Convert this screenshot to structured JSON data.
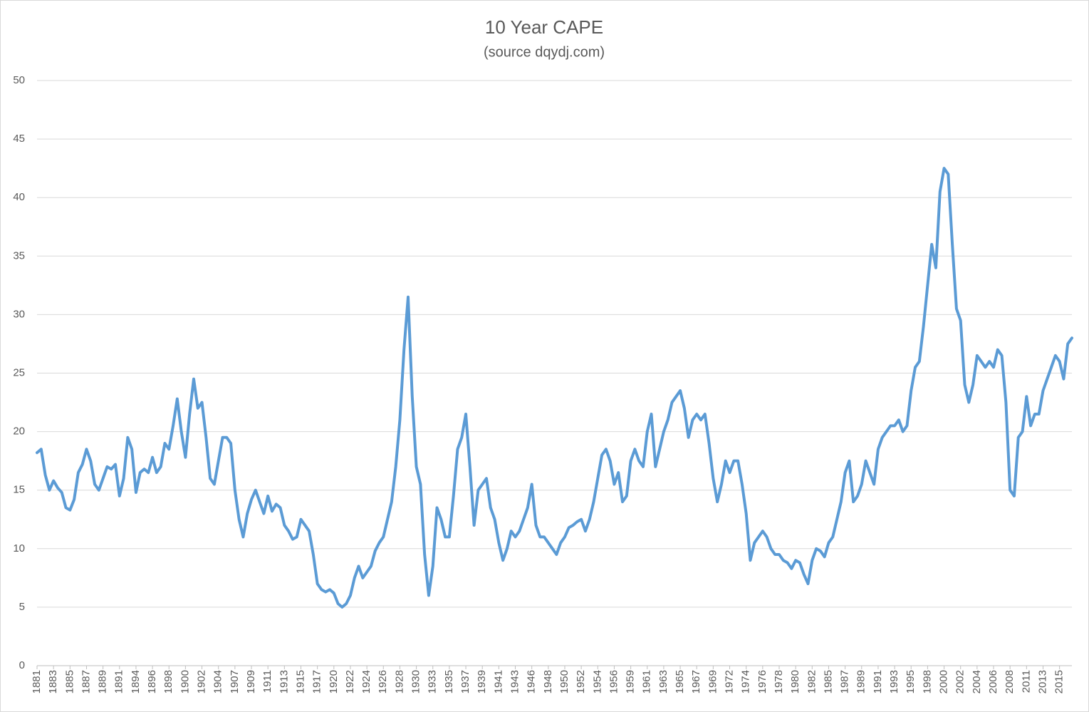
{
  "chart_data": {
    "type": "line",
    "title": "10 Year CAPE",
    "subtitle": "(source dqydj.com)",
    "categories": [
      "1881",
      null,
      null,
      null,
      "1883",
      null,
      null,
      null,
      "1885",
      null,
      null,
      null,
      "1887",
      null,
      null,
      null,
      "1889",
      null,
      null,
      null,
      "1891",
      null,
      null,
      null,
      "1894",
      null,
      null,
      null,
      "1896",
      null,
      null,
      null,
      "1898",
      null,
      null,
      null,
      "1900",
      null,
      null,
      null,
      "1902",
      null,
      null,
      null,
      "1904",
      null,
      null,
      null,
      "1907",
      null,
      null,
      null,
      "1909",
      null,
      null,
      null,
      "1911",
      null,
      null,
      null,
      "1913",
      null,
      null,
      null,
      "1915",
      null,
      null,
      null,
      "1917",
      null,
      null,
      null,
      "1920",
      null,
      null,
      null,
      "1922",
      null,
      null,
      null,
      "1924",
      null,
      null,
      null,
      "1926",
      null,
      null,
      null,
      "1928",
      null,
      null,
      null,
      "1930",
      null,
      null,
      null,
      "1933",
      null,
      null,
      null,
      "1935",
      null,
      null,
      null,
      "1937",
      null,
      null,
      null,
      "1939",
      null,
      null,
      null,
      "1941",
      null,
      null,
      null,
      "1943",
      null,
      null,
      null,
      "1946",
      null,
      null,
      null,
      "1948",
      null,
      null,
      null,
      "1950",
      null,
      null,
      null,
      "1952",
      null,
      null,
      null,
      "1954",
      null,
      null,
      null,
      "1956",
      null,
      null,
      null,
      "1959",
      null,
      null,
      null,
      "1961",
      null,
      null,
      null,
      "1963",
      null,
      null,
      null,
      "1965",
      null,
      null,
      null,
      "1967",
      null,
      null,
      null,
      "1969",
      null,
      null,
      null,
      "1972",
      null,
      null,
      null,
      "1974",
      null,
      null,
      null,
      "1976",
      null,
      null,
      null,
      "1978",
      null,
      null,
      null,
      "1980",
      null,
      null,
      null,
      "1982",
      null,
      null,
      null,
      "1985",
      null,
      null,
      null,
      "1987",
      null,
      null,
      null,
      "1989",
      null,
      null,
      null,
      "1991",
      null,
      null,
      null,
      "1993",
      null,
      null,
      null,
      "1995",
      null,
      null,
      null,
      "1998",
      null,
      null,
      null,
      "2000",
      null,
      null,
      null,
      "2002",
      null,
      null,
      null,
      "2004",
      null,
      null,
      null,
      "2006",
      null,
      null,
      null,
      "2008",
      null,
      null,
      null,
      "2011",
      null,
      null,
      null,
      "2013",
      null,
      null,
      null,
      "2015",
      null,
      null,
      null
    ],
    "values": [
      18.2,
      18.5,
      16.3,
      15.0,
      15.8,
      15.2,
      14.8,
      13.5,
      13.3,
      14.2,
      16.5,
      17.2,
      18.5,
      17.5,
      15.5,
      15.0,
      16.0,
      17.0,
      16.8,
      17.2,
      14.5,
      16.0,
      19.5,
      18.5,
      14.8,
      16.5,
      16.8,
      16.5,
      17.8,
      16.5,
      17.0,
      19.0,
      18.5,
      20.5,
      22.8,
      20.0,
      17.8,
      21.5,
      24.5,
      22.0,
      22.5,
      19.5,
      16.0,
      15.5,
      17.5,
      19.5,
      19.5,
      19.0,
      15.0,
      12.5,
      11.0,
      13.0,
      14.2,
      15.0,
      14.0,
      13.0,
      14.5,
      13.2,
      13.8,
      13.5,
      12.0,
      11.5,
      10.8,
      11.0,
      12.5,
      12.0,
      11.5,
      9.5,
      7.0,
      6.5,
      6.3,
      6.5,
      6.2,
      5.3,
      5.0,
      5.3,
      6.0,
      7.5,
      8.5,
      7.5,
      8.0,
      8.5,
      9.8,
      10.5,
      11.0,
      12.5,
      14.0,
      17.0,
      21.0,
      27.0,
      31.5,
      23.0,
      17.0,
      15.5,
      9.5,
      6.0,
      8.5,
      13.5,
      12.5,
      11.0,
      11.0,
      14.5,
      18.5,
      19.5,
      21.5,
      17.0,
      12.0,
      15.0,
      15.5,
      16.0,
      13.5,
      12.5,
      10.5,
      9.0,
      10.0,
      11.5,
      11.0,
      11.5,
      12.5,
      13.5,
      15.5,
      12.0,
      11.0,
      11.0,
      10.5,
      10.0,
      9.5,
      10.5,
      11.0,
      11.8,
      12.0,
      12.3,
      12.5,
      11.5,
      12.5,
      14.0,
      16.0,
      18.0,
      18.5,
      17.5,
      15.5,
      16.5,
      14.0,
      14.5,
      17.5,
      18.5,
      17.5,
      17.0,
      20.0,
      21.5,
      17.0,
      18.5,
      20.0,
      21.0,
      22.5,
      23.0,
      23.5,
      22.0,
      19.5,
      21.0,
      21.5,
      21.0,
      21.5,
      19.0,
      16.0,
      14.0,
      15.5,
      17.5,
      16.5,
      17.5,
      17.5,
      15.5,
      13.0,
      9.0,
      10.5,
      11.0,
      11.5,
      11.0,
      10.0,
      9.5,
      9.5,
      9.0,
      8.8,
      8.3,
      9.0,
      8.8,
      7.8,
      7.0,
      9.0,
      10.0,
      9.8,
      9.3,
      10.5,
      11.0,
      12.5,
      14.0,
      16.5,
      17.5,
      14.0,
      14.5,
      15.5,
      17.5,
      16.5,
      15.5,
      18.5,
      19.5,
      20.0,
      20.5,
      20.5,
      21.0,
      20.0,
      20.5,
      23.5,
      25.5,
      26.0,
      29.0,
      32.5,
      36.0,
      34.0,
      40.5,
      42.5,
      42.0,
      36.0,
      30.5,
      29.5,
      24.0,
      22.5,
      24.0,
      26.5,
      26.0,
      25.5,
      26.0,
      25.5,
      27.0,
      26.5,
      22.5,
      15.0,
      14.5,
      19.5,
      20.0,
      23.0,
      20.5,
      21.5,
      21.5,
      23.5,
      24.5,
      25.5,
      26.5,
      26.0,
      24.5,
      27.5,
      28.0
    ],
    "color": "#5b9bd5",
    "ylim": [
      0,
      50
    ],
    "yticks": [
      0,
      5,
      10,
      15,
      20,
      25,
      30,
      35,
      40,
      45,
      50
    ],
    "grid": true
  }
}
